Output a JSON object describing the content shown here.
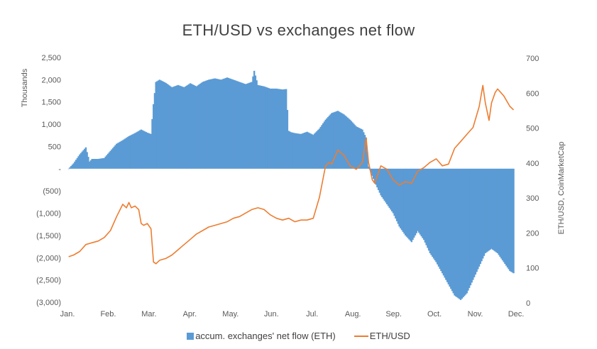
{
  "chart_data": {
    "type": "bar+line",
    "title": "ETH/USD vs exchanges net flow",
    "categories": [
      "Jan.",
      "Feb.",
      "Mar.",
      "Apr.",
      "May.",
      "Jun.",
      "Jul.",
      "Aug.",
      "Sep.",
      "Oct.",
      "Nov.",
      "Dec."
    ],
    "y_left": {
      "label": "Thousands",
      "ylim": [
        -3000,
        2500
      ],
      "ticks": [
        2500,
        2000,
        1500,
        1000,
        500,
        0,
        -500,
        -1000,
        -1500,
        -2000,
        -2500,
        -3000
      ],
      "tick_labels": [
        "2,500",
        "2,000",
        "1,500",
        "1,000",
        "500",
        "-",
        "(500)",
        "(1,000)",
        "(1,500)",
        "(2,000)",
        "(2,500)",
        "(3,000)"
      ]
    },
    "y_right": {
      "label": "ETH/USD, CoinMarketCap",
      "ylim": [
        0,
        700
      ],
      "ticks": [
        700,
        600,
        500,
        400,
        300,
        200,
        100,
        0
      ],
      "tick_labels": [
        "700",
        "600",
        "500",
        "400",
        "300",
        "200",
        "100",
        "0"
      ]
    },
    "legend_position": "bottom",
    "grid": false,
    "series": [
      {
        "name": "accum. exchanges' net flow (ETH)",
        "kind": "area-bar",
        "axis": "left",
        "color": "#5B9BD5",
        "x": [
          1,
          5,
          10,
          15,
          18,
          20,
          25,
          30,
          35,
          40,
          45,
          50,
          55,
          60,
          65,
          68,
          70,
          72,
          75,
          80,
          85,
          90,
          95,
          100,
          105,
          110,
          115,
          120,
          125,
          130,
          135,
          140,
          145,
          150,
          152,
          155,
          160,
          165,
          170,
          175,
          178,
          180,
          182,
          185,
          190,
          195,
          200,
          205,
          210,
          215,
          220,
          225,
          230,
          235,
          240,
          243,
          245,
          250,
          255,
          260,
          265,
          270,
          275,
          280,
          285,
          290,
          295,
          300,
          305,
          310,
          315,
          320,
          325,
          330,
          335,
          340,
          345,
          350,
          355,
          360,
          363
        ],
        "values": [
          0,
          120,
          320,
          480,
          160,
          220,
          220,
          240,
          400,
          560,
          640,
          730,
          800,
          880,
          810,
          780,
          1450,
          1950,
          2000,
          1930,
          1830,
          1880,
          1830,
          1920,
          1850,
          1950,
          2000,
          2030,
          2000,
          2050,
          2000,
          1950,
          1900,
          1950,
          2200,
          1880,
          1850,
          1800,
          1800,
          1780,
          1790,
          850,
          820,
          800,
          780,
          830,
          760,
          900,
          1100,
          1250,
          1300,
          1220,
          1100,
          950,
          880,
          700,
          50,
          -300,
          -600,
          -800,
          -1000,
          -1300,
          -1500,
          -1650,
          -1400,
          -1600,
          -1900,
          -2100,
          -2350,
          -2600,
          -2850,
          -2950,
          -2800,
          -2500,
          -2200,
          -1900,
          -1800,
          -1900,
          -2100,
          -2300,
          -2350
        ]
      },
      {
        "name": "ETH/USD",
        "kind": "line",
        "axis": "right",
        "color": "#ED7D31",
        "x": [
          1,
          5,
          10,
          15,
          20,
          25,
          30,
          35,
          40,
          45,
          48,
          50,
          52,
          55,
          58,
          60,
          62,
          65,
          68,
          70,
          72,
          75,
          80,
          85,
          90,
          95,
          100,
          105,
          110,
          115,
          120,
          125,
          130,
          135,
          140,
          145,
          150,
          155,
          160,
          165,
          170,
          175,
          180,
          185,
          190,
          195,
          200,
          205,
          210,
          213,
          215,
          220,
          225,
          230,
          235,
          240,
          243,
          245,
          248,
          250,
          255,
          260,
          265,
          270,
          275,
          280,
          285,
          290,
          295,
          300,
          305,
          310,
          315,
          320,
          325,
          330,
          335,
          338,
          340,
          343,
          345,
          348,
          350,
          355,
          360,
          363
        ],
        "values": [
          130,
          135,
          145,
          165,
          170,
          175,
          185,
          205,
          245,
          280,
          270,
          285,
          270,
          275,
          265,
          225,
          220,
          225,
          210,
          115,
          110,
          120,
          125,
          135,
          150,
          165,
          180,
          195,
          205,
          215,
          220,
          225,
          230,
          240,
          245,
          255,
          265,
          270,
          265,
          250,
          240,
          235,
          240,
          230,
          235,
          235,
          240,
          300,
          390,
          400,
          395,
          435,
          420,
          390,
          380,
          400,
          470,
          400,
          350,
          340,
          390,
          380,
          350,
          335,
          345,
          340,
          375,
          385,
          400,
          410,
          390,
          395,
          440,
          460,
          480,
          500,
          560,
          620,
          570,
          520,
          570,
          600,
          610,
          590,
          560,
          550
        ]
      }
    ]
  }
}
